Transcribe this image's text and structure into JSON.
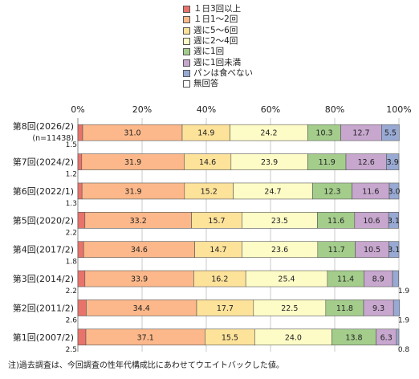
{
  "chart_data": {
    "type": "bar",
    "orientation": "horizontal",
    "stacked": "percent",
    "categories": [
      [
        "第8回(2026/2)",
        "(n=11438)"
      ],
      [
        "第7回(2024/2)"
      ],
      [
        "第6回(2022/1)"
      ],
      [
        "第5回(2020/2)"
      ],
      [
        "第4回(2017/2)"
      ],
      [
        "第3回(2014/2)"
      ],
      [
        "第2回(2011/2)"
      ],
      [
        "第1回(2007/2)"
      ]
    ],
    "series": [
      {
        "name": "１日3回以上",
        "color": "#e8736b",
        "values": [
          1.5,
          1.2,
          1.3,
          2.2,
          1.8,
          2.2,
          2.6,
          2.5
        ]
      },
      {
        "name": "１日1～2回",
        "color": "#fcb88a",
        "values": [
          31.0,
          31.9,
          31.9,
          33.2,
          34.6,
          33.9,
          34.4,
          37.1
        ]
      },
      {
        "name": "週に5～6回",
        "color": "#fde29a",
        "values": [
          14.9,
          14.6,
          15.2,
          15.7,
          14.7,
          16.2,
          17.7,
          15.5
        ]
      },
      {
        "name": "週に2～4回",
        "color": "#fefcc6",
        "values": [
          24.2,
          23.9,
          24.7,
          23.5,
          23.6,
          25.4,
          22.5,
          24.0
        ]
      },
      {
        "name": "週に1回",
        "color": "#a4cd8c",
        "values": [
          10.3,
          11.9,
          12.3,
          11.6,
          11.7,
          11.4,
          11.8,
          13.8
        ]
      },
      {
        "name": "週に1回未満",
        "color": "#c7a7ce",
        "values": [
          12.7,
          12.6,
          11.6,
          10.6,
          10.5,
          8.9,
          9.3,
          6.3
        ]
      },
      {
        "name": "パンは食べない",
        "color": "#98a9d3",
        "values": [
          5.5,
          3.9,
          3.0,
          3.1,
          3.1,
          1.9,
          1.9,
          0.8
        ]
      },
      {
        "name": "無回答",
        "color": "#ffffff",
        "values": [
          0,
          0,
          0,
          0,
          0,
          0,
          0,
          0
        ]
      }
    ],
    "xlim": [
      0,
      100
    ],
    "ticks": [
      "0%",
      "20%",
      "40%",
      "60%",
      "80%",
      "100%"
    ],
    "grid": true,
    "legend": "top-center"
  },
  "footnote": "注)過去調査は、今回調査の性年代構成比にあわせてウエイトバックした値。"
}
